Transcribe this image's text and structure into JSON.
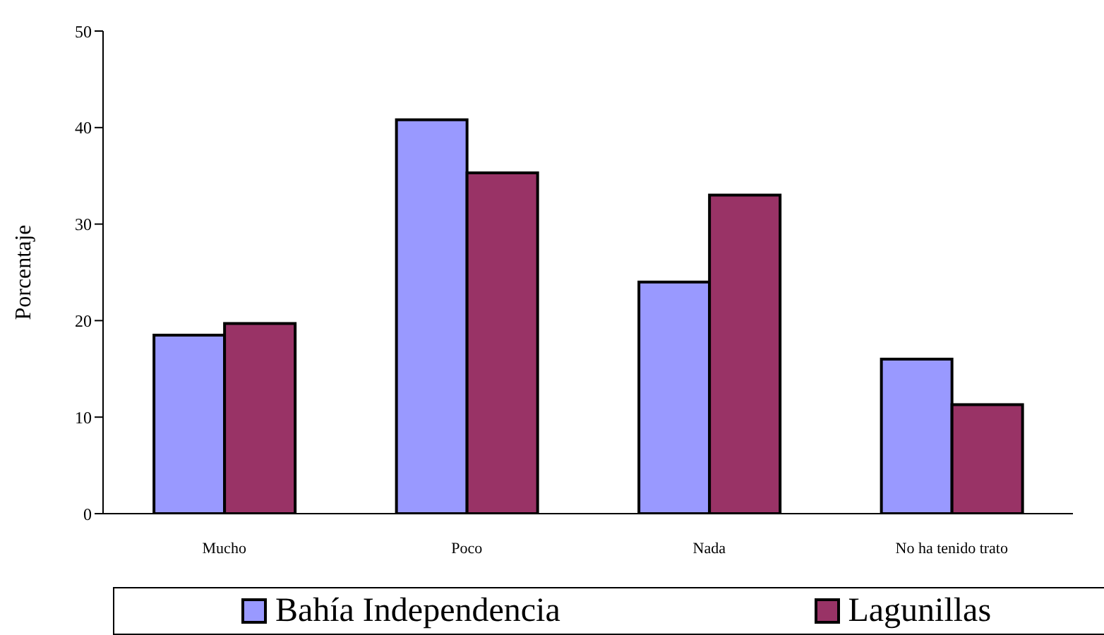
{
  "chart_data": {
    "type": "bar",
    "ylabel": "Porcentaje",
    "categories": [
      "Mucho",
      "Poco",
      "Nada",
      "No ha tenido trato"
    ],
    "series": [
      {
        "name": "Bahía Independencia",
        "color": "#9999ff",
        "values": [
          18.5,
          40.8,
          24.0,
          16.0
        ]
      },
      {
        "name": "Lagunillas",
        "color": "#993366",
        "values": [
          19.7,
          35.3,
          33.0,
          11.3
        ]
      }
    ],
    "ylim": [
      0,
      50
    ],
    "yticks": [
      0,
      10,
      20,
      30,
      40,
      50
    ],
    "grid": false,
    "legend": "bottom"
  }
}
